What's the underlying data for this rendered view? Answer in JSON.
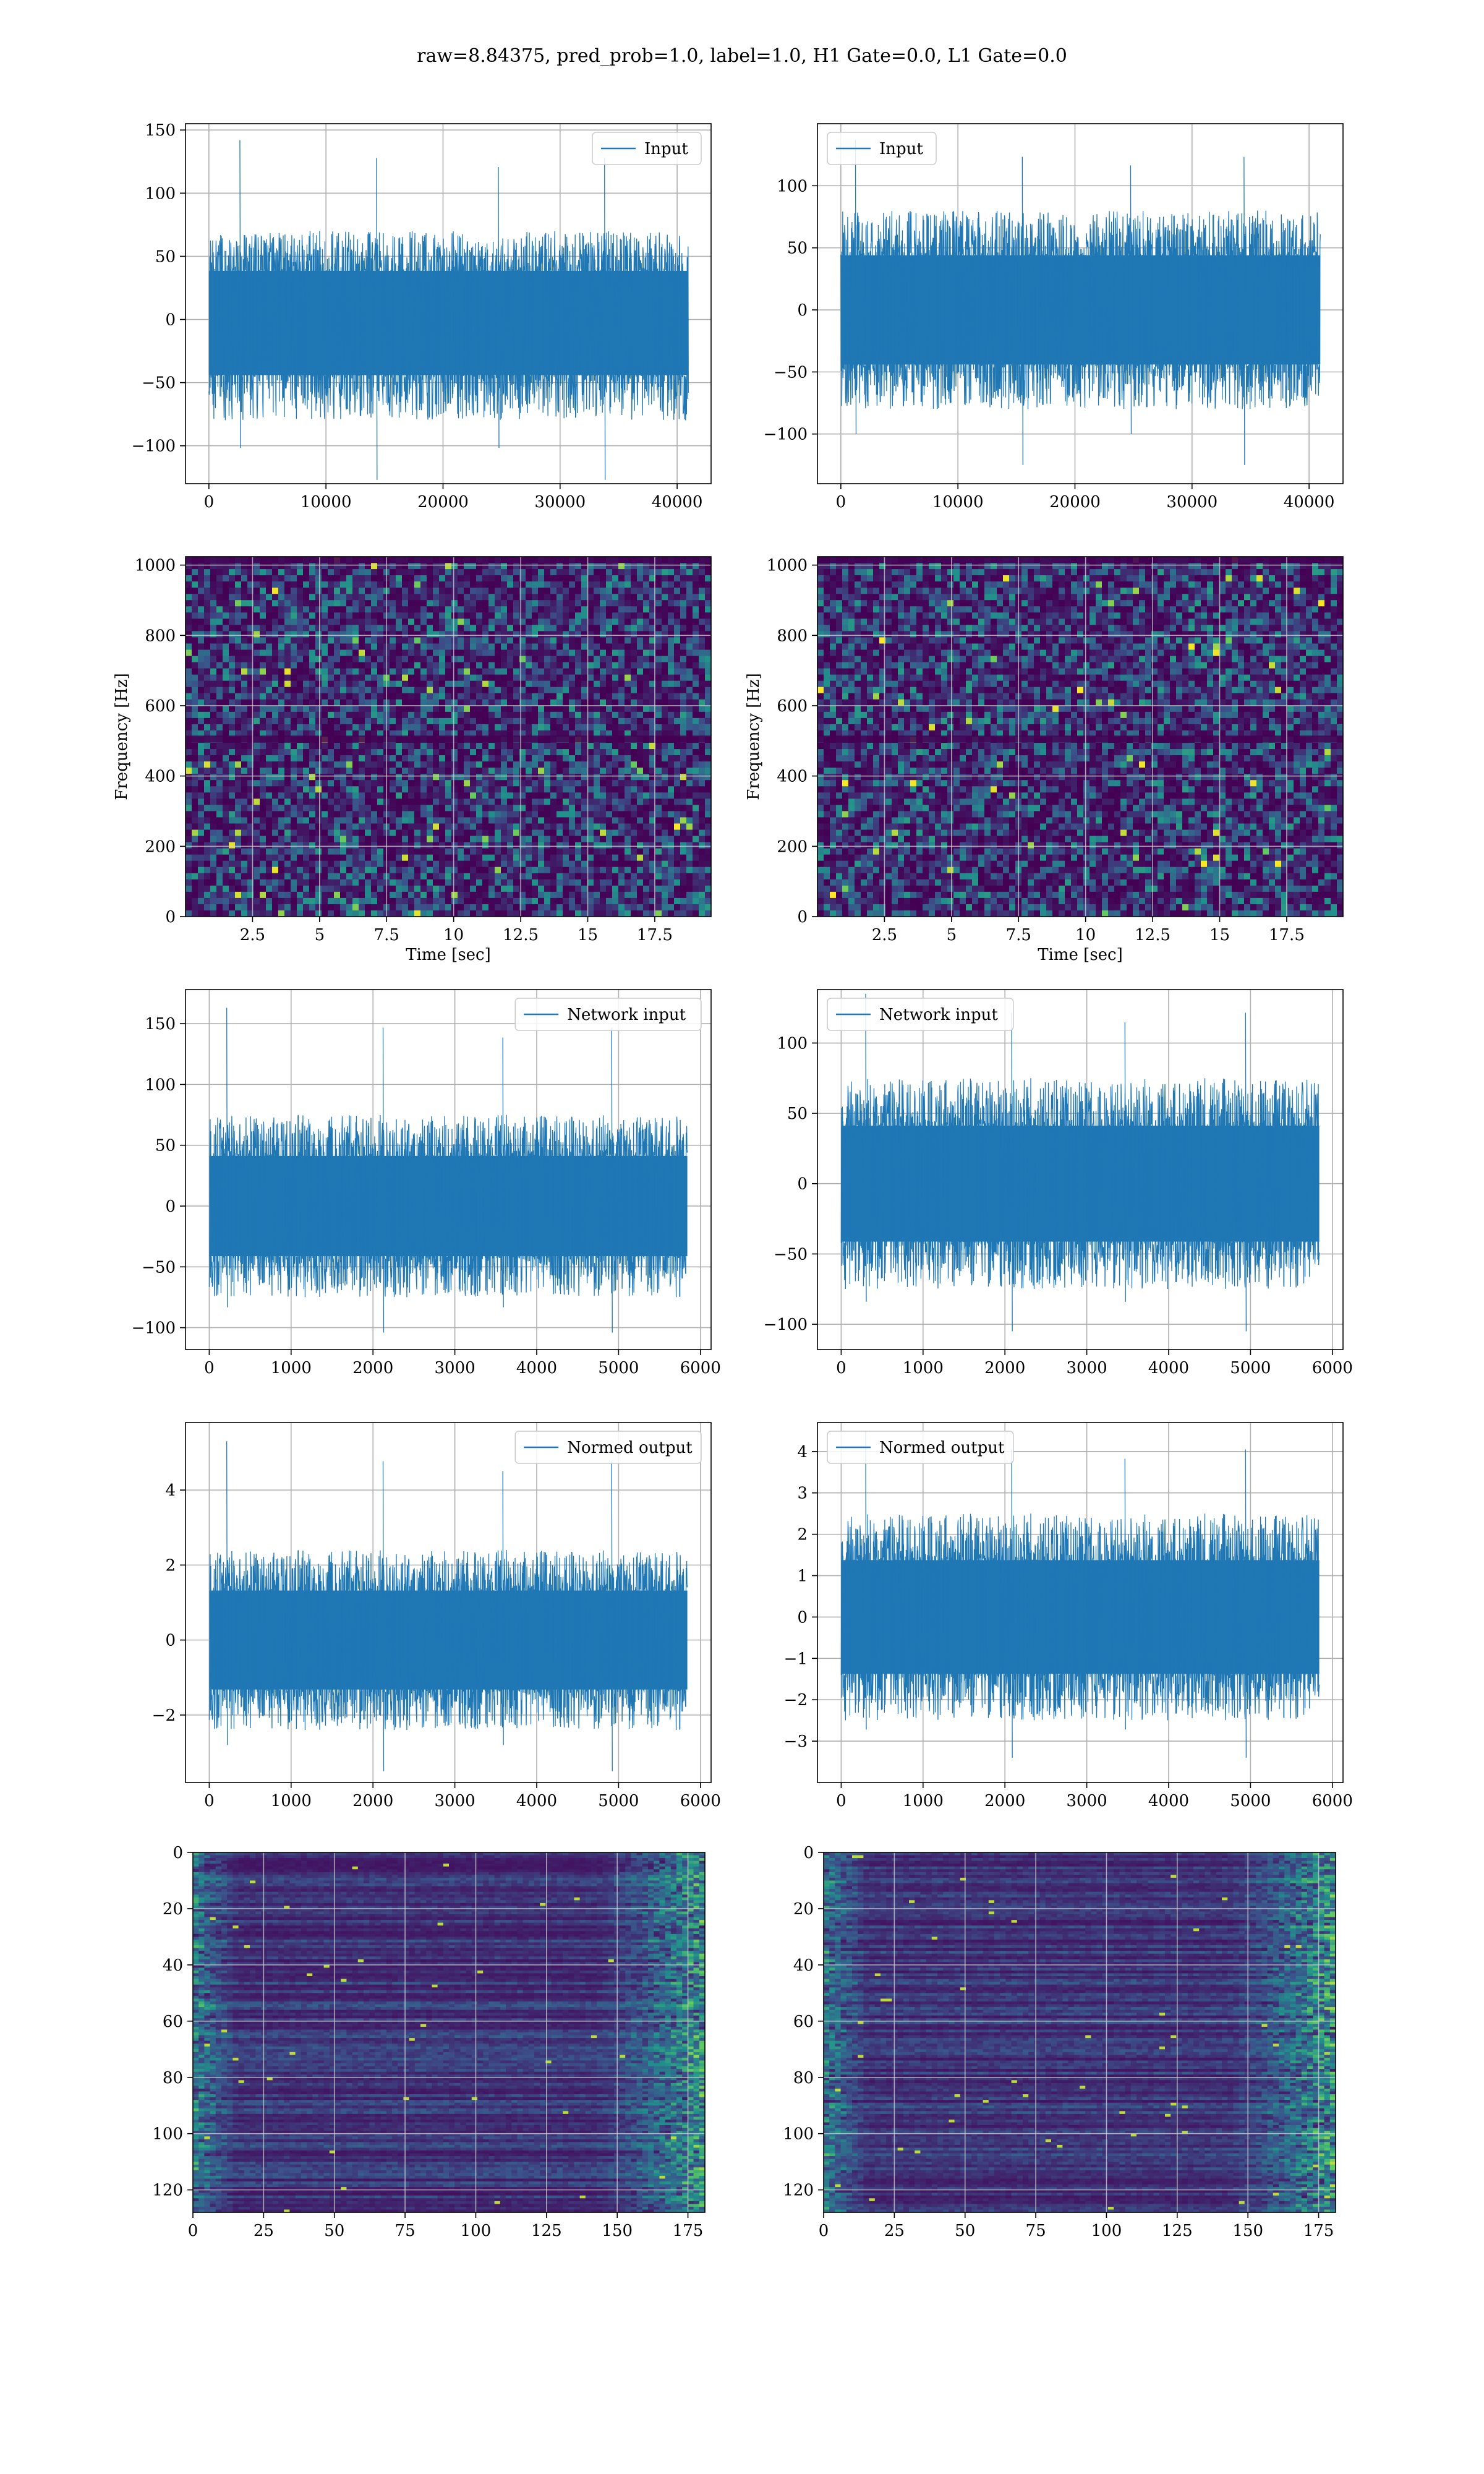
{
  "suptitle": "raw=8.84375, pred_prob=1.0, label=1.0, H1 Gate=0.0, L1 Gate=0.0",
  "colors": {
    "line": "#1f77b4",
    "viridis_dark": "#440154",
    "viridis_mid": "#3b528b",
    "viridis_teal": "#21918c",
    "viridis_green": "#5ec962",
    "viridis_yellow": "#fde725"
  },
  "chart_data": [
    {
      "type": "line",
      "panel": "row1-left",
      "seed": 11,
      "legend": "Input",
      "legend_loc": "upper right",
      "xlim": [
        -2000,
        42900
      ],
      "ylim": [
        -130,
        155
      ],
      "xticks": [
        0,
        10000,
        20000,
        30000,
        40000
      ],
      "yticks": [
        -100,
        -50,
        0,
        50,
        100,
        150
      ],
      "xlabel": "",
      "ylabel": "",
      "signal": {
        "x_start": 0,
        "x_end": 40960,
        "envelope_low": -80,
        "envelope_high": 70,
        "extreme_max": 142,
        "extreme_min": -127
      }
    },
    {
      "type": "line",
      "panel": "row1-right",
      "seed": 23,
      "legend": "Input",
      "legend_loc": "upper left",
      "xlim": [
        -2000,
        42900
      ],
      "ylim": [
        -140,
        150
      ],
      "xticks": [
        0,
        10000,
        20000,
        30000,
        40000
      ],
      "yticks": [
        -100,
        -50,
        0,
        50,
        100
      ],
      "xlabel": "",
      "ylabel": "",
      "signal": {
        "x_start": 0,
        "x_end": 40960,
        "envelope_low": -80,
        "envelope_high": 80,
        "extreme_max": 137,
        "extreme_min": -125
      }
    },
    {
      "type": "heatmap",
      "panel": "row2-left",
      "seed": 5,
      "style": "spectrogram",
      "xlim": [
        0,
        19.6
      ],
      "ylim": [
        0,
        1024
      ],
      "xticks": [
        2.5,
        5.0,
        7.5,
        10.0,
        12.5,
        15.0,
        17.5
      ],
      "yticks": [
        0,
        200,
        400,
        600,
        800,
        1000
      ],
      "xlabel": "Time [sec]",
      "ylabel": "Frequency [Hz]"
    },
    {
      "type": "heatmap",
      "panel": "row2-right",
      "seed": 9,
      "style": "spectrogram",
      "xlim": [
        0,
        19.6
      ],
      "ylim": [
        0,
        1024
      ],
      "xticks": [
        2.5,
        5.0,
        7.5,
        10.0,
        12.5,
        15.0,
        17.5
      ],
      "yticks": [
        0,
        200,
        400,
        600,
        800,
        1000
      ],
      "xlabel": "Time [sec]",
      "ylabel": "Frequency [Hz]"
    },
    {
      "type": "line",
      "panel": "row3-left",
      "seed": 31,
      "legend": "Network input",
      "legend_loc": "upper right",
      "xlim": [
        -290,
        6130
      ],
      "ylim": [
        -118,
        178
      ],
      "xticks": [
        0,
        1000,
        2000,
        3000,
        4000,
        5000,
        6000
      ],
      "yticks": [
        -100,
        -50,
        0,
        50,
        100,
        150
      ],
      "xlabel": "",
      "ylabel": "",
      "signal": {
        "x_start": 0,
        "x_end": 5840,
        "envelope_low": -75,
        "envelope_high": 75,
        "extreme_max": 163,
        "extreme_min": -104
      }
    },
    {
      "type": "line",
      "panel": "row3-right",
      "seed": 47,
      "legend": "Network input",
      "legend_loc": "upper left",
      "xlim": [
        -290,
        6130
      ],
      "ylim": [
        -118,
        138
      ],
      "xticks": [
        0,
        1000,
        2000,
        3000,
        4000,
        5000,
        6000
      ],
      "yticks": [
        -100,
        -50,
        0,
        50,
        100
      ],
      "xlabel": "",
      "ylabel": "",
      "signal": {
        "x_start": 0,
        "x_end": 5840,
        "envelope_low": -75,
        "envelope_high": 75,
        "extreme_max": 135,
        "extreme_min": -105
      }
    },
    {
      "type": "line",
      "panel": "row4-left",
      "seed": 31,
      "legend": "Normed output",
      "legend_loc": "upper right",
      "xlim": [
        -290,
        6130
      ],
      "ylim": [
        -3.8,
        5.8
      ],
      "xticks": [
        0,
        1000,
        2000,
        3000,
        4000,
        5000,
        6000
      ],
      "yticks": [
        -2,
        0,
        2,
        4
      ],
      "xlabel": "",
      "ylabel": "",
      "signal": {
        "x_start": 0,
        "x_end": 5840,
        "envelope_low": -2.4,
        "envelope_high": 2.4,
        "extreme_max": 5.3,
        "extreme_min": -3.5
      }
    },
    {
      "type": "line",
      "panel": "row4-right",
      "seed": 47,
      "legend": "Normed output",
      "legend_loc": "upper left",
      "xlim": [
        -290,
        6130
      ],
      "ylim": [
        -4.0,
        4.7
      ],
      "xticks": [
        0,
        1000,
        2000,
        3000,
        4000,
        5000,
        6000
      ],
      "yticks": [
        -3,
        -2,
        -1,
        0,
        1,
        2,
        3,
        4
      ],
      "xlabel": "",
      "ylabel": "",
      "signal": {
        "x_start": 0,
        "x_end": 5840,
        "envelope_low": -2.5,
        "envelope_high": 2.5,
        "extreme_max": 4.5,
        "extreme_min": -3.4
      }
    },
    {
      "type": "heatmap",
      "panel": "row5-left",
      "seed": 13,
      "style": "feature_map",
      "xlim": [
        0,
        181
      ],
      "ylim": [
        128,
        0
      ],
      "xticks": [
        0,
        25,
        50,
        75,
        100,
        125,
        150,
        175
      ],
      "yticks": [
        0,
        20,
        40,
        60,
        80,
        100,
        120
      ],
      "xlabel": "",
      "ylabel": ""
    },
    {
      "type": "heatmap",
      "panel": "row5-right",
      "seed": 17,
      "style": "feature_map",
      "xlim": [
        0,
        181
      ],
      "ylim": [
        128,
        0
      ],
      "xticks": [
        0,
        25,
        50,
        75,
        100,
        125,
        150,
        175
      ],
      "yticks": [
        0,
        20,
        40,
        60,
        80,
        100,
        120
      ],
      "xlabel": "",
      "ylabel": ""
    }
  ]
}
